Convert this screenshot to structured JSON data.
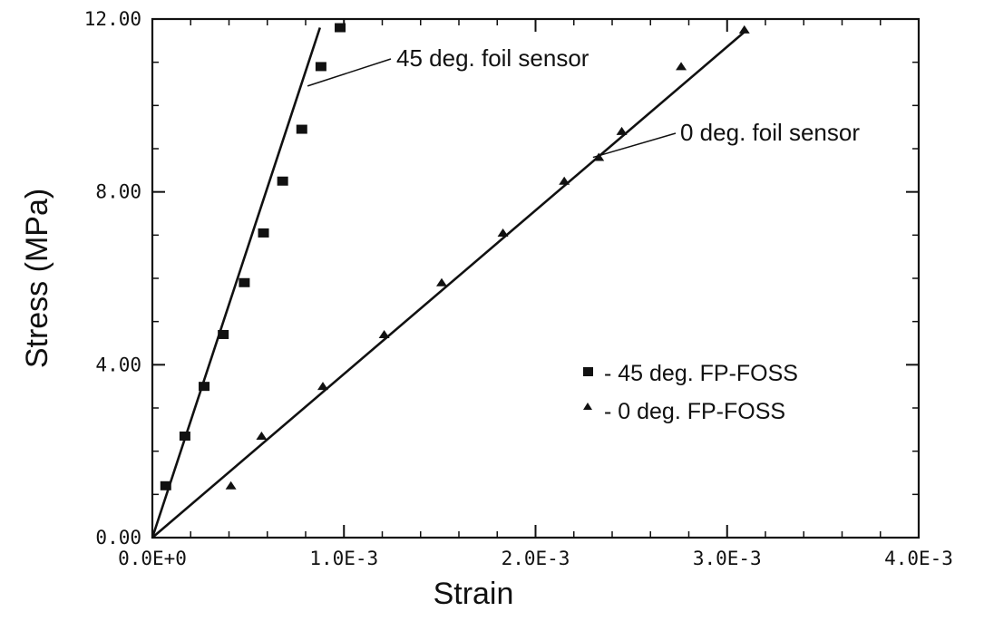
{
  "chart_data": {
    "type": "scatter",
    "title": "",
    "xlabel": "Strain",
    "ylabel": "Stress (MPa)",
    "xlim": [
      0,
      0.004
    ],
    "ylim": [
      0,
      12
    ],
    "x_ticks": [
      0,
      0.001,
      0.002,
      0.003,
      0.004
    ],
    "x_tick_labels": [
      "0.0E+0",
      "1.0E-3",
      "2.0E-3",
      "3.0E-3",
      "4.0E-3"
    ],
    "y_ticks": [
      0,
      4,
      8,
      12
    ],
    "y_tick_labels": [
      "0.00",
      "4.00",
      "8.00",
      "12.00"
    ],
    "grid": false,
    "legend_position": "lower-right",
    "series": [
      {
        "name": "- 45 deg. FP-FOSS",
        "marker": "square",
        "x": [
          7e-05,
          0.00017,
          0.00027,
          0.00037,
          0.00048,
          0.00058,
          0.00068,
          0.00078,
          0.00088,
          0.00098
        ],
        "y": [
          1.2,
          2.35,
          3.5,
          4.7,
          5.9,
          7.05,
          8.25,
          9.45,
          10.9,
          11.8
        ]
      },
      {
        "name": "- 0 deg. FP-FOSS",
        "marker": "triangle",
        "x": [
          0.00041,
          0.00057,
          0.00089,
          0.00121,
          0.00151,
          0.00183,
          0.00215,
          0.00233,
          0.00245,
          0.00276,
          0.00309
        ],
        "y": [
          1.2,
          2.35,
          3.5,
          4.7,
          5.9,
          7.05,
          8.25,
          8.8,
          9.4,
          10.9,
          11.75
        ]
      }
    ],
    "lines": [
      {
        "label": "45 deg. foil sensor",
        "x": [
          0,
          0.000875
        ],
        "y": [
          0,
          11.8
        ]
      },
      {
        "label": "0 deg. foil sensor",
        "x": [
          0,
          0.00309
        ],
        "y": [
          0,
          11.7
        ]
      }
    ],
    "annotations": [
      {
        "text": "45 deg. foil sensor",
        "target": [
          0.00081,
          10.45
        ]
      },
      {
        "text": "0 deg. foil sensor",
        "target": [
          0.0023,
          8.8
        ]
      }
    ]
  }
}
